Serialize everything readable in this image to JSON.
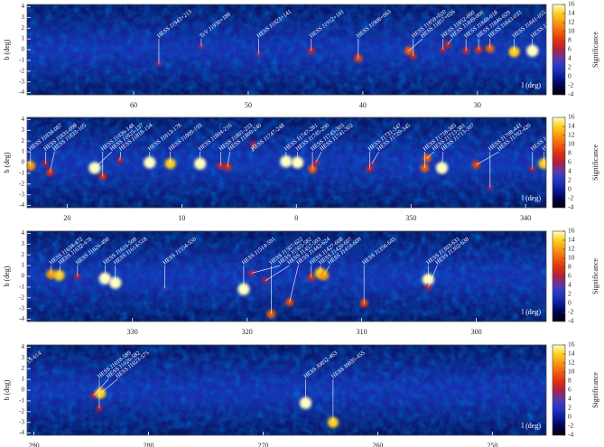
{
  "chart_data": [
    {
      "type": "heatmap",
      "xlabel": "l (deg)",
      "ylabel": "b (deg)",
      "colorbar_label": "Significance",
      "xlim": [
        69.3,
        24.0
      ],
      "ylim": [
        -4.2,
        4.2
      ],
      "xticks": [
        60,
        50,
        40,
        30
      ],
      "yticks": [
        4,
        3,
        2,
        1,
        0,
        -1,
        -2,
        -3,
        -4
      ],
      "clim": [
        -4,
        16
      ],
      "colorbar_ticks": [
        16,
        14,
        12,
        10,
        8,
        6,
        4,
        2,
        0,
        -2,
        -4
      ],
      "sources": [
        {
          "label": "HESS J1943+213",
          "x": 57.8,
          "y": -1.3,
          "value": 5
        },
        {
          "label": "TeV J1930+188",
          "x": 54.1,
          "y": 0.3,
          "value": 5
        },
        {
          "label": "HESS J1923+141",
          "x": 49.1,
          "y": -0.4,
          "value": 5
        },
        {
          "label": "HESS J1912+101",
          "x": 44.5,
          "y": -0.1,
          "value": 7
        },
        {
          "label": "HESS J1908+063",
          "x": 40.4,
          "y": -0.8,
          "value": 9
        },
        {
          "label": "HESS J1858+020",
          "x": 35.6,
          "y": -0.6,
          "value": 7
        },
        {
          "label": "HESS J1857+026",
          "x": 36.0,
          "y": -0.1,
          "value": 10
        },
        {
          "label": "HESS J1852-000",
          "x": 33.0,
          "y": 0.0,
          "value": 6
        },
        {
          "label": "HESS J1849-000",
          "x": 32.6,
          "y": 0.5,
          "value": 7
        },
        {
          "label": "HESS J1848-018",
          "x": 31.0,
          "y": -0.1,
          "value": 7
        },
        {
          "label": "HESS J1846-029",
          "x": 29.9,
          "y": 0.0,
          "value": 8
        },
        {
          "label": "HESS J1843-033",
          "x": 28.9,
          "y": 0.1,
          "value": 10
        },
        {
          "label": "HESS J1841-055",
          "x": 26.8,
          "y": -0.2,
          "value": 14
        },
        {
          "label": "HESS J1837-069",
          "x": 25.2,
          "y": -0.1,
          "value": 16
        }
      ]
    },
    {
      "type": "heatmap",
      "xlabel": "l (deg)",
      "ylabel": "b (deg)",
      "colorbar_label": "Significance",
      "xlim": [
        23.5,
        -21.8
      ],
      "ylim": [
        -4.2,
        4.2
      ],
      "xticks": [
        20,
        10,
        0,
        {
          "value": -10,
          "label": "350"
        },
        {
          "value": -20,
          "label": "340"
        }
      ],
      "yticks": [
        4,
        3,
        2,
        1,
        0,
        -1,
        -2,
        -3,
        -4
      ],
      "clim": [
        -4,
        16
      ],
      "colorbar_ticks": [
        16,
        14,
        12,
        10,
        8,
        6,
        4,
        2,
        0,
        -2,
        -4
      ],
      "sources": [
        {
          "label": "HESS J1834-087",
          "x": 23.2,
          "y": -0.3,
          "value": 12
        },
        {
          "label": "HESS J1831-098",
          "x": 21.9,
          "y": -0.1,
          "value": 6
        },
        {
          "label": "HESS J1833-105",
          "x": 21.5,
          "y": -0.9,
          "value": 8
        },
        {
          "label": "HESS J1826-148",
          "x": 16.9,
          "y": -1.3,
          "value": 8
        },
        {
          "label": "HESS J1825-137",
          "x": 17.6,
          "y": -0.5,
          "value": 16
        },
        {
          "label": "HESS J1818-154",
          "x": 15.4,
          "y": 0.2,
          "value": 6
        },
        {
          "label": "HESS J1813-178",
          "x": 12.8,
          "y": 0.0,
          "value": 16
        },
        {
          "label": "HESS J1809-193",
          "x": 11.0,
          "y": -0.1,
          "value": 14
        },
        {
          "label": "HESS J1804-216",
          "x": 8.4,
          "y": -0.1,
          "value": 16
        },
        {
          "label": "HESS J1801-233",
          "x": 6.6,
          "y": -0.3,
          "value": 7
        },
        {
          "label": "HESS J1800-240",
          "x": 6.0,
          "y": -0.4,
          "value": 8
        },
        {
          "label": "HESS J1747-248",
          "x": 3.8,
          "y": 1.7,
          "value": 6
        },
        {
          "label": "HESS J1747-281",
          "x": 0.9,
          "y": 0.1,
          "value": 16
        },
        {
          "label": "HESS J1745-290",
          "x": -0.1,
          "y": 0.0,
          "value": 16
        },
        {
          "label": "HESS J1745-303",
          "x": -1.4,
          "y": -0.6,
          "value": 10
        },
        {
          "label": "HESS J1741-302",
          "x": -1.7,
          "y": 0.0,
          "value": 6
        },
        {
          "label": "HESS J1731-347",
          "x": -6.4,
          "y": -0.6,
          "value": 7
        },
        {
          "label": "HESS J1729-345",
          "x": -6.6,
          "y": -0.1,
          "value": 5
        },
        {
          "label": "HESS J1718-385",
          "x": -11.2,
          "y": -0.5,
          "value": 10
        },
        {
          "label": "HESS J1713-381",
          "x": -11.4,
          "y": 0.4,
          "value": 10
        },
        {
          "label": "HESS J1713-397",
          "x": -12.7,
          "y": -0.5,
          "value": 16
        },
        {
          "label": "HESS J1708-443",
          "x": -16.9,
          "y": -2.3,
          "value": 5
        },
        {
          "label": "HESS J1702-420",
          "x": -15.7,
          "y": -0.2,
          "value": 9
        },
        {
          "label": "HESS J1646-458",
          "x": -20.6,
          "y": -0.6,
          "value": 6
        },
        {
          "label": "HESS J1640-465",
          "x": -21.6,
          "y": -0.1,
          "value": 14
        }
      ]
    },
    {
      "type": "heatmap",
      "xlabel": "l (deg)",
      "ylabel": "b (deg)",
      "colorbar_label": "Significance",
      "xlim": [
        339.2,
        293.9
      ],
      "ylim": [
        -4.2,
        4.2
      ],
      "xticks": [
        330,
        320,
        310,
        300
      ],
      "yticks": [
        4,
        3,
        2,
        1,
        0,
        -1,
        -2,
        -3,
        -4
      ],
      "clim": [
        -4,
        16
      ],
      "colorbar_ticks": [
        16,
        14,
        12,
        10,
        8,
        6,
        4,
        2,
        0,
        -2,
        -4
      ],
      "sources": [
        {
          "label": "HESS J1634-472",
          "x": 337.1,
          "y": 0.2,
          "value": 12
        },
        {
          "label": "HESS J1632-478",
          "x": 336.4,
          "y": 0.1,
          "value": 14
        },
        {
          "label": "HESS J1626-490",
          "x": 334.8,
          "y": 0.0,
          "value": 6
        },
        {
          "label": "HESS J1616-508",
          "x": 332.4,
          "y": -0.2,
          "value": 16
        },
        {
          "label": "HESS J1614-518",
          "x": 331.5,
          "y": -0.6,
          "value": 16
        },
        {
          "label": "HESS J1554-550",
          "x": 327.2,
          "y": -1.1,
          "value": 4
        },
        {
          "label": "HESS J1514-591",
          "x": 320.3,
          "y": -1.2,
          "value": 16
        },
        {
          "label": "HESS J1507-622",
          "x": 317.9,
          "y": -3.5,
          "value": 10
        },
        {
          "label": "HESS J1503-582",
          "x": 319.6,
          "y": 0.3,
          "value": 6
        },
        {
          "label": "HESS J1457-593",
          "x": 318.4,
          "y": -0.4,
          "value": 6
        },
        {
          "label": "HESS J1442-624",
          "x": 316.3,
          "y": -2.4,
          "value": 9
        },
        {
          "label": "HESS J1427-608",
          "x": 314.4,
          "y": -0.1,
          "value": 8
        },
        {
          "label": "HESS J1420-607",
          "x": 313.6,
          "y": 0.3,
          "value": 14
        },
        {
          "label": "HESS J1418-609",
          "x": 313.3,
          "y": 0.1,
          "value": 12
        },
        {
          "label": "HESS J1356-645",
          "x": 309.8,
          "y": -2.5,
          "value": 9
        },
        {
          "label": "HESS J1303-631",
          "x": 304.2,
          "y": -0.3,
          "value": 16
        },
        {
          "label": "HESS J1302-638",
          "x": 304.2,
          "y": -1.0,
          "value": 6
        }
      ]
    },
    {
      "type": "heatmap",
      "xlabel": "l (deg)",
      "ylabel": "b (deg)",
      "colorbar_label": "Significance",
      "xlim": [
        290.6,
        245.3
      ],
      "ylim": [
        -4.2,
        4.2
      ],
      "xticks": [
        290,
        280,
        270,
        260,
        250
      ],
      "yticks": [
        4,
        3,
        2,
        1,
        0,
        -1,
        -2,
        -3,
        -4
      ],
      "clim": [
        -4,
        16
      ],
      "colorbar_ticks": [
        16,
        14,
        12,
        10,
        8,
        6,
        4,
        2,
        0,
        -2,
        -4
      ],
      "sources": [
        {
          "label": "HESS J1119-614",
          "x": 292.1,
          "y": -0.5,
          "value": 5
        },
        {
          "label": "HESS J1018-589",
          "x": 284.3,
          "y": -1.7,
          "value": 6
        },
        {
          "label": "HESS J1026-582",
          "x": 284.8,
          "y": -0.5,
          "value": 6
        },
        {
          "label": "HESS J1023-575",
          "x": 284.2,
          "y": -0.3,
          "value": 14
        },
        {
          "label": "HESS J0852-463",
          "x": 266.3,
          "y": -1.2,
          "value": 16
        },
        {
          "label": "HESS J0835-455",
          "x": 263.9,
          "y": -3.0,
          "value": 14
        }
      ]
    }
  ]
}
